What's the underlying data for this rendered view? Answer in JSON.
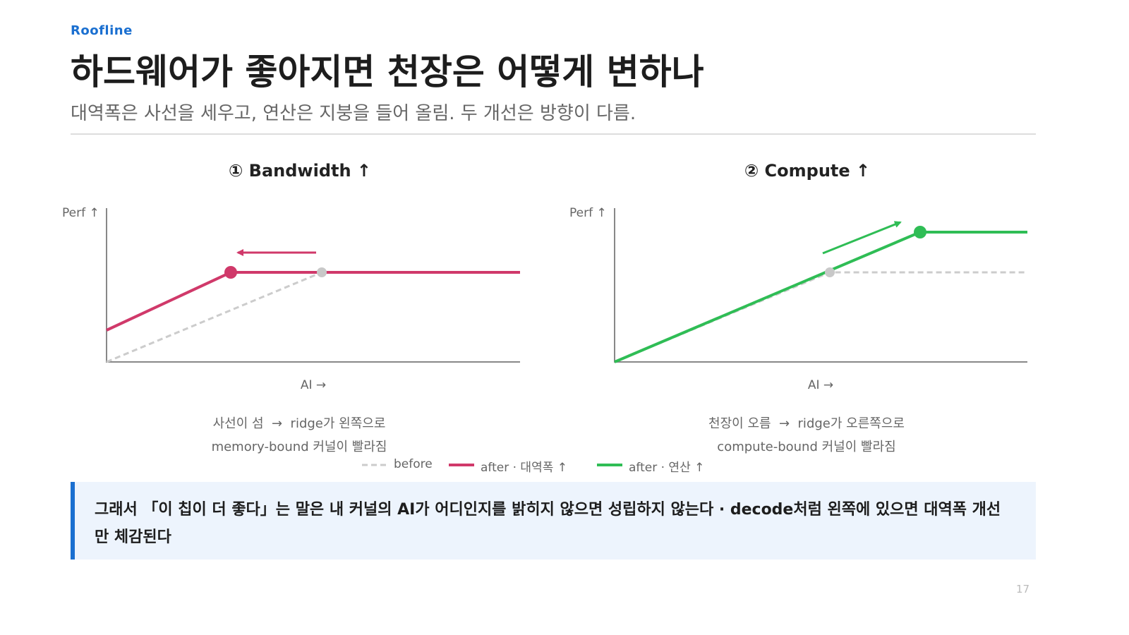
{
  "header": {
    "eyebrow": "Roofline",
    "title": "하드웨어가 좋아지면 천장은 어떻게 변하나",
    "subtitle": "대역폭은 사선을 세우고, 연산은 지붕을 들어 올림. 두 개선은 방향이 다름."
  },
  "panels": [
    {
      "title": "① Bandwidth ↑",
      "y_label": "Perf ↑",
      "x_label": "AI →",
      "caption": [
        "사선이 섬  →  ridge가 왼쪽으로",
        "memory-bound 커널이 빨라짐"
      ]
    },
    {
      "title": "② Compute ↑",
      "y_label": "Perf ↑",
      "x_label": "AI →",
      "caption": [
        "천장이 오름  →  ridge가 오른쪽으로",
        "compute-bound 커널이 빨라짐"
      ]
    }
  ],
  "legend": [
    "before",
    "after · 대역폭 ↑",
    "after · 연산 ↑"
  ],
  "callout": "그래서 「이 칩이 더 좋다」는 말은 내 커널의 AI가 어디인지를 밝히지 않으면 성립하지 않는다 · decode처럼 왼쪽에 있으면 대역폭 개선만 체감된다",
  "page_number": "17"
}
